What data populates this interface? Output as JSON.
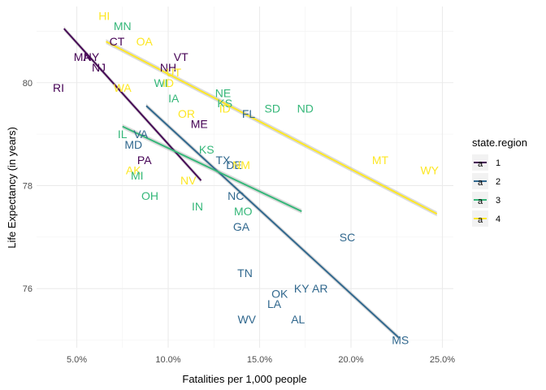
{
  "chart_data": {
    "type": "scatter",
    "title": "",
    "xlabel": "Fatalities per 1,000 people",
    "ylabel": "Life Expectancy (in years)",
    "xlim": [
      0.028,
      0.256
    ],
    "ylim": [
      74.85,
      81.48
    ],
    "x_ticks": [
      0.05,
      0.1,
      0.15,
      0.2,
      0.25
    ],
    "x_tick_labels": [
      "5.0%",
      "10.0%",
      "15.0%",
      "20.0%",
      "25.0%"
    ],
    "y_ticks": [
      76,
      78,
      80
    ],
    "y_tick_labels": [
      "76",
      "78",
      "80"
    ],
    "grid": true,
    "legend": {
      "title": "state.region",
      "placement": "right",
      "entries": [
        {
          "key": "1",
          "label": "1",
          "symbol": "a",
          "color": "#440154"
        },
        {
          "key": "2",
          "label": "2",
          "symbol": "a",
          "color": "#31688E"
        },
        {
          "key": "3",
          "label": "3",
          "symbol": "a",
          "color": "#35B779"
        },
        {
          "key": "4",
          "label": "4",
          "symbol": "a",
          "color": "#FDE725"
        }
      ]
    },
    "points": [
      {
        "label": "HI",
        "x": 0.065,
        "y": 81.3,
        "region": "4"
      },
      {
        "label": "MN",
        "x": 0.075,
        "y": 81.1,
        "region": "3"
      },
      {
        "label": "CT",
        "x": 0.072,
        "y": 80.8,
        "region": "1"
      },
      {
        "label": "OA",
        "x": 0.087,
        "y": 80.8,
        "region": "4"
      },
      {
        "label": "MA",
        "x": 0.053,
        "y": 80.5,
        "region": "1"
      },
      {
        "label": "NY",
        "x": 0.058,
        "y": 80.5,
        "region": "1"
      },
      {
        "label": "VT",
        "x": 0.107,
        "y": 80.5,
        "region": "1"
      },
      {
        "label": "NJ",
        "x": 0.062,
        "y": 80.3,
        "region": "1"
      },
      {
        "label": "NH",
        "x": 0.1,
        "y": 80.3,
        "region": "1"
      },
      {
        "label": "UT",
        "x": 0.103,
        "y": 80.2,
        "region": "4"
      },
      {
        "label": "RI",
        "x": 0.04,
        "y": 79.9,
        "region": "1"
      },
      {
        "label": "WA",
        "x": 0.075,
        "y": 79.9,
        "region": "4"
      },
      {
        "label": "WI",
        "x": 0.096,
        "y": 80.0,
        "region": "3"
      },
      {
        "label": "ID",
        "x": 0.1,
        "y": 80.0,
        "region": "4"
      },
      {
        "label": "IA",
        "x": 0.103,
        "y": 79.7,
        "region": "3"
      },
      {
        "label": "NE",
        "x": 0.13,
        "y": 79.8,
        "region": "3"
      },
      {
        "label": "KS",
        "x": 0.131,
        "y": 79.6,
        "region": "3"
      },
      {
        "label": "SD",
        "x": 0.157,
        "y": 79.5,
        "region": "3"
      },
      {
        "label": "ND",
        "x": 0.175,
        "y": 79.5,
        "region": "3"
      },
      {
        "label": "OR",
        "x": 0.11,
        "y": 79.4,
        "region": "4"
      },
      {
        "label": "ID",
        "x": 0.131,
        "y": 79.5,
        "region": "4"
      },
      {
        "label": "FL",
        "x": 0.144,
        "y": 79.4,
        "region": "2"
      },
      {
        "label": "ME",
        "x": 0.117,
        "y": 79.2,
        "region": "1"
      },
      {
        "label": "IL",
        "x": 0.075,
        "y": 79.0,
        "region": "3"
      },
      {
        "label": "VA",
        "x": 0.085,
        "y": 79.0,
        "region": "2"
      },
      {
        "label": "MD",
        "x": 0.081,
        "y": 78.8,
        "region": "2"
      },
      {
        "label": "KS",
        "x": 0.121,
        "y": 78.7,
        "region": "3"
      },
      {
        "label": "MT",
        "x": 0.216,
        "y": 78.5,
        "region": "4"
      },
      {
        "label": "PA",
        "x": 0.087,
        "y": 78.5,
        "region": "1"
      },
      {
        "label": "TX",
        "x": 0.13,
        "y": 78.5,
        "region": "2"
      },
      {
        "label": "DE",
        "x": 0.136,
        "y": 78.4,
        "region": "2"
      },
      {
        "label": "NM",
        "x": 0.14,
        "y": 78.4,
        "region": "4"
      },
      {
        "label": "WY",
        "x": 0.243,
        "y": 78.3,
        "region": "4"
      },
      {
        "label": "AK",
        "x": 0.081,
        "y": 78.3,
        "region": "4"
      },
      {
        "label": "MI",
        "x": 0.083,
        "y": 78.2,
        "region": "3"
      },
      {
        "label": "NV",
        "x": 0.111,
        "y": 78.1,
        "region": "4"
      },
      {
        "label": "OH",
        "x": 0.09,
        "y": 77.8,
        "region": "3"
      },
      {
        "label": "NC",
        "x": 0.137,
        "y": 77.8,
        "region": "2"
      },
      {
        "label": "IN",
        "x": 0.116,
        "y": 77.6,
        "region": "3"
      },
      {
        "label": "MO",
        "x": 0.141,
        "y": 77.5,
        "region": "3"
      },
      {
        "label": "GA",
        "x": 0.14,
        "y": 77.2,
        "region": "2"
      },
      {
        "label": "SC",
        "x": 0.198,
        "y": 77.0,
        "region": "2"
      },
      {
        "label": "TN",
        "x": 0.142,
        "y": 76.3,
        "region": "2"
      },
      {
        "label": "KY",
        "x": 0.173,
        "y": 76.0,
        "region": "2"
      },
      {
        "label": "AR",
        "x": 0.183,
        "y": 76.0,
        "region": "2"
      },
      {
        "label": "OK",
        "x": 0.161,
        "y": 75.9,
        "region": "2"
      },
      {
        "label": "LA",
        "x": 0.158,
        "y": 75.7,
        "region": "2"
      },
      {
        "label": "WV",
        "x": 0.143,
        "y": 75.4,
        "region": "2"
      },
      {
        "label": "AL",
        "x": 0.171,
        "y": 75.4,
        "region": "2"
      },
      {
        "label": "MS",
        "x": 0.227,
        "y": 75.0,
        "region": "2"
      }
    ],
    "fit_lines": [
      {
        "region": "1",
        "x": [
          0.043,
          0.118
        ],
        "y": [
          81.05,
          78.1
        ]
      },
      {
        "region": "2",
        "x": [
          0.088,
          0.226
        ],
        "y": [
          79.55,
          75.05
        ]
      },
      {
        "region": "3",
        "x": [
          0.075,
          0.173
        ],
        "y": [
          79.15,
          77.5
        ]
      },
      {
        "region": "4",
        "x": [
          0.066,
          0.247
        ],
        "y": [
          80.8,
          77.45
        ]
      }
    ]
  }
}
